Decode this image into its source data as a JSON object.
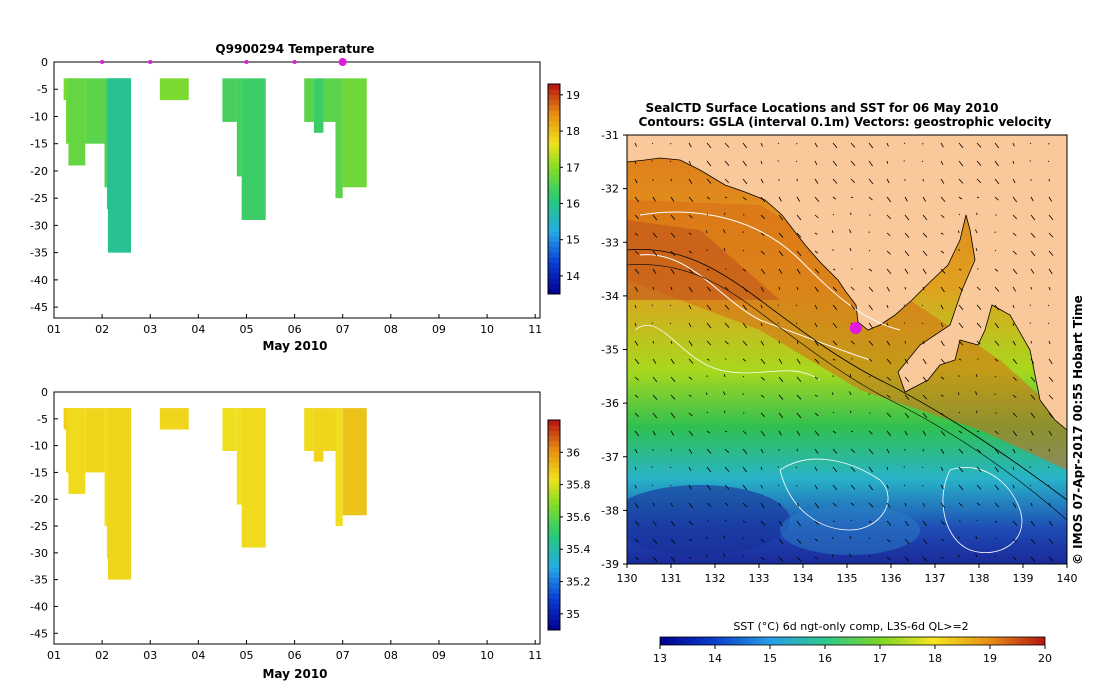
{
  "chart_data": [
    {
      "type": "heatmap",
      "title": "Q9900294  Temperature",
      "xlabel": "May 2010",
      "x_ticks": [
        "01",
        "02",
        "03",
        "04",
        "05",
        "06",
        "07",
        "08",
        "09",
        "10",
        "11"
      ],
      "y_ticks": [
        "0",
        "-5",
        "-10",
        "-15",
        "-20",
        "-25",
        "-30",
        "-35",
        "-40",
        "-45"
      ],
      "xlim": [
        1,
        11.1
      ],
      "ylim": [
        -47,
        0
      ],
      "colorbar": {
        "ticks": [
          "14",
          "15",
          "16",
          "17",
          "18",
          "19"
        ],
        "range": [
          13.5,
          19.3
        ]
      },
      "markers_x": [
        2.0,
        3.0,
        5.0,
        6.0,
        7.0
      ],
      "casts": [
        {
          "x0": 1.2,
          "x1": 1.5,
          "depth": 7,
          "value": 16.9
        },
        {
          "x0": 1.25,
          "x1": 1.4,
          "depth": 15,
          "value": 16.8
        },
        {
          "x0": 1.3,
          "x1": 1.65,
          "depth": 19,
          "value": 16.7
        },
        {
          "x0": 1.65,
          "x1": 2.05,
          "depth": 15,
          "value": 16.6
        },
        {
          "x0": 2.05,
          "x1": 2.6,
          "depth": 23,
          "value": 16.5
        },
        {
          "x0": 2.1,
          "x1": 2.6,
          "depth": 27,
          "value": 16.3
        },
        {
          "x0": 2.12,
          "x1": 2.6,
          "depth": 35,
          "value": 15.9
        },
        {
          "x0": 3.2,
          "x1": 3.8,
          "depth": 7,
          "value": 16.9
        },
        {
          "x0": 4.5,
          "x1": 4.8,
          "depth": 11,
          "value": 16.4
        },
        {
          "x0": 4.8,
          "x1": 4.9,
          "depth": 21,
          "value": 16.4
        },
        {
          "x0": 4.9,
          "x1": 5.4,
          "depth": 29,
          "value": 16.3
        },
        {
          "x0": 6.2,
          "x1": 6.4,
          "depth": 11,
          "value": 16.6
        },
        {
          "x0": 6.4,
          "x1": 6.6,
          "depth": 13,
          "value": 16.3
        },
        {
          "x0": 6.6,
          "x1": 6.85,
          "depth": 11,
          "value": 16.6
        },
        {
          "x0": 6.85,
          "x1": 7.0,
          "depth": 25,
          "value": 16.6
        },
        {
          "x0": 7.0,
          "x1": 7.5,
          "depth": 23,
          "value": 16.8
        }
      ]
    },
    {
      "type": "heatmap",
      "title": "",
      "xlabel": "May 2010",
      "x_ticks": [
        "01",
        "02",
        "03",
        "04",
        "05",
        "06",
        "07",
        "08",
        "09",
        "10",
        "11"
      ],
      "y_ticks": [
        "0",
        "-5",
        "-10",
        "-15",
        "-20",
        "-25",
        "-30",
        "-35",
        "-40",
        "-45"
      ],
      "xlim": [
        1,
        11.1
      ],
      "ylim": [
        -47,
        0
      ],
      "colorbar": {
        "ticks": [
          "35",
          "35.2",
          "35.4",
          "35.6",
          "35.8",
          "36"
        ],
        "range": [
          34.9,
          36.2
        ]
      },
      "casts": [
        {
          "x0": 1.2,
          "x1": 1.5,
          "depth": 7,
          "value": 35.88
        },
        {
          "x0": 1.25,
          "x1": 1.4,
          "depth": 15,
          "value": 35.86
        },
        {
          "x0": 1.3,
          "x1": 1.65,
          "depth": 19,
          "value": 35.85
        },
        {
          "x0": 1.65,
          "x1": 2.05,
          "depth": 15,
          "value": 35.86
        },
        {
          "x0": 2.05,
          "x1": 2.6,
          "depth": 25,
          "value": 35.84
        },
        {
          "x0": 2.1,
          "x1": 2.6,
          "depth": 31,
          "value": 35.85
        },
        {
          "x0": 2.12,
          "x1": 2.6,
          "depth": 35,
          "value": 35.86
        },
        {
          "x0": 3.2,
          "x1": 3.8,
          "depth": 7,
          "value": 35.86
        },
        {
          "x0": 4.5,
          "x1": 4.8,
          "depth": 11,
          "value": 35.84
        },
        {
          "x0": 4.8,
          "x1": 4.9,
          "depth": 21,
          "value": 35.84
        },
        {
          "x0": 4.9,
          "x1": 5.4,
          "depth": 29,
          "value": 35.85
        },
        {
          "x0": 6.2,
          "x1": 6.4,
          "depth": 11,
          "value": 35.85
        },
        {
          "x0": 6.4,
          "x1": 6.6,
          "depth": 13,
          "value": 35.86
        },
        {
          "x0": 6.6,
          "x1": 6.85,
          "depth": 11,
          "value": 35.86
        },
        {
          "x0": 6.85,
          "x1": 7.0,
          "depth": 25,
          "value": 35.84
        },
        {
          "x0": 7.0,
          "x1": 7.5,
          "depth": 23,
          "value": 35.9
        }
      ]
    },
    {
      "type": "heatmap",
      "title_line1": "SealCTD Surface Locations and SST for 06 May 2010",
      "title_line2": "Contours: GSLA (interval 0.1m) Vectors: geostrophic velocity",
      "x_ticks": [
        "130",
        "131",
        "132",
        "133",
        "134",
        "135",
        "136",
        "137",
        "138",
        "139",
        "140"
      ],
      "y_ticks": [
        "-31",
        "-32",
        "-33",
        "-34",
        "-35",
        "-36",
        "-37",
        "-38",
        "-39"
      ],
      "xlim": [
        130,
        140
      ],
      "ylim": [
        -39,
        -31
      ],
      "side_label": "© IMOS 07-Apr-2017 00:55 Hobart Time",
      "colorbar_title": "SST (°C) 6d ngt-only comp, L3S-6d QL>=2",
      "colorbar_ticks": [
        "13",
        "14",
        "15",
        "16",
        "17",
        "18",
        "19",
        "20"
      ],
      "colorbar_range": [
        13,
        20
      ],
      "seal_location": {
        "lon": 135.2,
        "lat": -34.6
      },
      "land_color": "#f9c89b"
    }
  ]
}
